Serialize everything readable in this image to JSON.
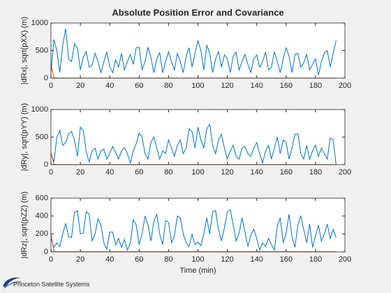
{
  "chart_data": [
    {
      "type": "line",
      "title": "Absolute Position Error and Covariance",
      "ylabel": "|dRx|, sqrt(pXX) (m)",
      "x": [
        0,
        2,
        4,
        6,
        8,
        10,
        12,
        14,
        16,
        18,
        20,
        22,
        24,
        26,
        28,
        30,
        32,
        34,
        36,
        38,
        40,
        42,
        44,
        46,
        48,
        50,
        52,
        54,
        56,
        58,
        60,
        62,
        64,
        66,
        68,
        70,
        72,
        74,
        76,
        78,
        80,
        82,
        84,
        86,
        88,
        90,
        92,
        94,
        96,
        98,
        100,
        102,
        104,
        106,
        108,
        110,
        112,
        114,
        116,
        118,
        120,
        122,
        124,
        126,
        128,
        130,
        132,
        134,
        136,
        138,
        140,
        142,
        144,
        146,
        148,
        150,
        152,
        154,
        156,
        158,
        160,
        162,
        164,
        166,
        168,
        170,
        172,
        174,
        176,
        178,
        180,
        182,
        184,
        186,
        188,
        190,
        192,
        194
      ],
      "series": [
        {
          "color": "#0072bd",
          "values": [
            100,
            700,
            500,
            100,
            600,
            900,
            350,
            300,
            620,
            550,
            150,
            380,
            480,
            200,
            230,
            450,
            300,
            100,
            300,
            480,
            200,
            100,
            330,
            200,
            450,
            150,
            300,
            430,
            250,
            550,
            560,
            150,
            300,
            560,
            380,
            100,
            350,
            460,
            100,
            300,
            480,
            300,
            150,
            450,
            300,
            100,
            400,
            550,
            200,
            450,
            680,
            500,
            150,
            600,
            450,
            100,
            350,
            480,
            200,
            420,
            350,
            100,
            400,
            470,
            150,
            300,
            430,
            250,
            100,
            350,
            420,
            200,
            300,
            470,
            150,
            200,
            480,
            300,
            100,
            350,
            550,
            400,
            100,
            430,
            450,
            200,
            280,
            430,
            150,
            250,
            350,
            50,
            300,
            450,
            500,
            200,
            450,
            680
          ]
        },
        {
          "color": "#d95319",
          "values": [
            250,
            8,
            3,
            2,
            2,
            2,
            2,
            2,
            2,
            2,
            2,
            2,
            2,
            2,
            2,
            2,
            2,
            2,
            2,
            2,
            2,
            2,
            2,
            2,
            2,
            2,
            2,
            2,
            2,
            2,
            2,
            2,
            2,
            2,
            2,
            2,
            2,
            2,
            2,
            2,
            2,
            2,
            2,
            2,
            2,
            2,
            2,
            2,
            2,
            2,
            2,
            2,
            2,
            2,
            2,
            2,
            2,
            2,
            2,
            2,
            2,
            2,
            2,
            2,
            2,
            2,
            2,
            2,
            2,
            2,
            2,
            2,
            2,
            2,
            2,
            2,
            2,
            2,
            2,
            2,
            2,
            2,
            2,
            2,
            2,
            2,
            2,
            2,
            2,
            2,
            2,
            2,
            2,
            2,
            2,
            2,
            2,
            2
          ]
        }
      ],
      "xlim": [
        0,
        200
      ],
      "xticks": [
        0,
        20,
        40,
        60,
        80,
        100,
        120,
        140,
        160,
        180,
        200
      ],
      "ylim": [
        0,
        1000
      ],
      "yticks": [
        0,
        500,
        1000
      ]
    },
    {
      "type": "line",
      "ylabel": "|dRy|, sqrt(pYY) (m)",
      "x": [
        0,
        2,
        4,
        6,
        8,
        10,
        12,
        14,
        16,
        18,
        20,
        22,
        24,
        26,
        28,
        30,
        32,
        34,
        36,
        38,
        40,
        42,
        44,
        46,
        48,
        50,
        52,
        54,
        56,
        58,
        60,
        62,
        64,
        66,
        68,
        70,
        72,
        74,
        76,
        78,
        80,
        82,
        84,
        86,
        88,
        90,
        92,
        94,
        96,
        98,
        100,
        102,
        104,
        106,
        108,
        110,
        112,
        114,
        116,
        118,
        120,
        122,
        124,
        126,
        128,
        130,
        132,
        134,
        136,
        138,
        140,
        142,
        144,
        146,
        148,
        150,
        152,
        154,
        156,
        158,
        160,
        162,
        164,
        166,
        168,
        170,
        172,
        174,
        176,
        178,
        180,
        182,
        184,
        186,
        188,
        190,
        192,
        194
      ],
      "series": [
        {
          "color": "#0072bd",
          "values": [
            200,
            50,
            500,
            620,
            350,
            400,
            560,
            600,
            450,
            150,
            680,
            620,
            230,
            50,
            250,
            300,
            100,
            250,
            280,
            100,
            200,
            330,
            220,
            100,
            250,
            310,
            200,
            30,
            250,
            380,
            570,
            500,
            200,
            100,
            400,
            500,
            300,
            100,
            250,
            200,
            450,
            300,
            150,
            350,
            450,
            200,
            300,
            650,
            600,
            300,
            680,
            450,
            300,
            650,
            730,
            350,
            200,
            450,
            550,
            300,
            100,
            250,
            350,
            150,
            100,
            300,
            330,
            200,
            150,
            300,
            400,
            200,
            30,
            250,
            350,
            100,
            300,
            500,
            200,
            450,
            400,
            100,
            300,
            550,
            560,
            200,
            100,
            350,
            100,
            250,
            350,
            150,
            300,
            200,
            100,
            480,
            450,
            0
          ]
        },
        {
          "color": "#d95319",
          "values": [
            220,
            8,
            3,
            2,
            2,
            2,
            2,
            2,
            2,
            2,
            2,
            2,
            2,
            2,
            2,
            2,
            2,
            2,
            2,
            2,
            2,
            2,
            2,
            2,
            2,
            2,
            2,
            2,
            2,
            2,
            2,
            2,
            2,
            2,
            2,
            2,
            2,
            2,
            2,
            2,
            2,
            2,
            2,
            2,
            2,
            2,
            2,
            2,
            2,
            2,
            2,
            2,
            2,
            2,
            2,
            2,
            2,
            2,
            2,
            2,
            2,
            2,
            2,
            2,
            2,
            2,
            2,
            2,
            2,
            2,
            2,
            2,
            2,
            2,
            2,
            2,
            2,
            2,
            2,
            2,
            2,
            2,
            2,
            2,
            2,
            2,
            2,
            2,
            2,
            2,
            2,
            2,
            2,
            2,
            2,
            2,
            2,
            2
          ]
        }
      ],
      "xlim": [
        0,
        200
      ],
      "xticks": [
        0,
        20,
        40,
        60,
        80,
        100,
        120,
        140,
        160,
        180,
        200
      ],
      "ylim": [
        0,
        1000
      ],
      "yticks": [
        0,
        500,
        1000
      ]
    },
    {
      "type": "line",
      "ylabel": "|dRz|, sqrt(pZZ) (m)",
      "xlabel": "Time (min)",
      "x": [
        0,
        2,
        4,
        6,
        8,
        10,
        12,
        14,
        16,
        18,
        20,
        22,
        24,
        26,
        28,
        30,
        32,
        34,
        36,
        38,
        40,
        42,
        44,
        46,
        48,
        50,
        52,
        54,
        56,
        58,
        60,
        62,
        64,
        66,
        68,
        70,
        72,
        74,
        76,
        78,
        80,
        82,
        84,
        86,
        88,
        90,
        92,
        94,
        96,
        98,
        100,
        102,
        104,
        106,
        108,
        110,
        112,
        114,
        116,
        118,
        120,
        122,
        124,
        126,
        128,
        130,
        132,
        134,
        136,
        138,
        140,
        142,
        144,
        146,
        148,
        150,
        152,
        154,
        156,
        158,
        160,
        162,
        164,
        166,
        168,
        170,
        172,
        174,
        176,
        178,
        180,
        182,
        184,
        186,
        188,
        190,
        192,
        194
      ],
      "series": [
        {
          "color": "#0072bd",
          "values": [
            150,
            50,
            100,
            60,
            200,
            320,
            170,
            160,
            440,
            460,
            200,
            210,
            450,
            420,
            120,
            200,
            370,
            300,
            100,
            30,
            220,
            220,
            80,
            150,
            50,
            140,
            20,
            100,
            360,
            300,
            80,
            200,
            400,
            300,
            120,
            340,
            420,
            200,
            80,
            350,
            330,
            100,
            180,
            400,
            380,
            200,
            100,
            60,
            200,
            80,
            110,
            70,
            200,
            380,
            200,
            450,
            460,
            250,
            120,
            270,
            450,
            470,
            300,
            120,
            210,
            380,
            220,
            60,
            190,
            250,
            150,
            20,
            100,
            60,
            150,
            80,
            20,
            290,
            380,
            100,
            210,
            420,
            170,
            50,
            300,
            400,
            250,
            100,
            310,
            50,
            180,
            300,
            120,
            200,
            310,
            150,
            250,
            160
          ]
        },
        {
          "color": "#d95319",
          "values": [
            200,
            10,
            3,
            2,
            2,
            2,
            2,
            2,
            2,
            2,
            2,
            2,
            2,
            2,
            2,
            2,
            2,
            2,
            2,
            2,
            2,
            2,
            2,
            2,
            2,
            2,
            2,
            2,
            2,
            2,
            2,
            2,
            2,
            2,
            2,
            2,
            2,
            2,
            2,
            2,
            2,
            2,
            2,
            2,
            2,
            2,
            2,
            2,
            2,
            2,
            2,
            2,
            2,
            2,
            2,
            2,
            2,
            2,
            2,
            2,
            2,
            2,
            2,
            2,
            2,
            2,
            2,
            2,
            2,
            2,
            2,
            2,
            2,
            2,
            2,
            2,
            2,
            2,
            2,
            2,
            2,
            2,
            2,
            2,
            2,
            2,
            2,
            2,
            2,
            2,
            2,
            2,
            2,
            2,
            2,
            2,
            2,
            2
          ]
        }
      ],
      "xlim": [
        0,
        200
      ],
      "xticks": [
        0,
        20,
        40,
        60,
        80,
        100,
        120,
        140,
        160,
        180,
        200
      ],
      "ylim": [
        0,
        600
      ],
      "yticks": [
        0,
        200,
        400,
        600
      ]
    }
  ],
  "footer": {
    "logo": "Princeton Satellite Systems"
  }
}
